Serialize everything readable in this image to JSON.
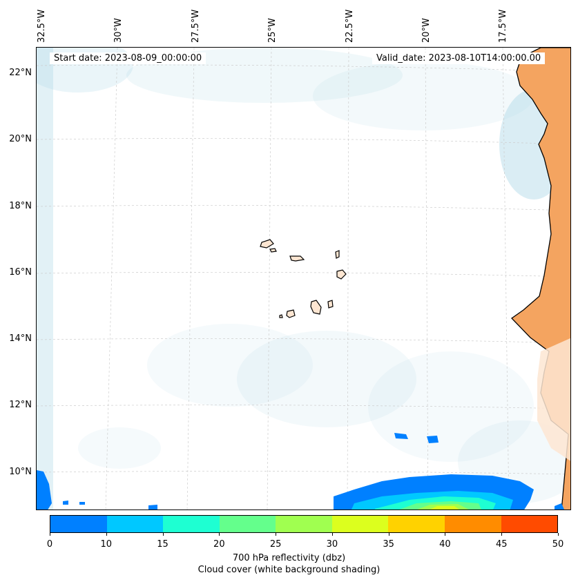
{
  "map": {
    "start_label": "Start date: 2023-08-09_00:00:00",
    "valid_label": "Valid_date: 2023-08-10T14:00:00.00",
    "lon_labels": [
      "32.5°W",
      "30°W",
      "27.5°W",
      "25°W",
      "22.5°W",
      "20°W",
      "17.5°W"
    ],
    "lat_labels": [
      "22°N",
      "20°N",
      "18°N",
      "16°N",
      "14°N",
      "12°N",
      "10°N"
    ]
  },
  "colorbar": {
    "ticks": [
      "0",
      "10",
      "15",
      "20",
      "25",
      "30",
      "35",
      "40",
      "45",
      "50"
    ],
    "colors": [
      "#0080ff",
      "#00c8ff",
      "#1effd2",
      "#64ff8c",
      "#a0ff50",
      "#dcff1e",
      "#ffd200",
      "#ff8c00",
      "#ff4b00"
    ],
    "label_line1": "700 hPa reflectivity (dbz)",
    "label_line2": "Cloud cover (white background shading)"
  },
  "palette": {
    "land": "#f4a460",
    "land_light": "#fde6d2",
    "cloud": "#add8e6",
    "graticule": "#cccccc",
    "coast": "#000000"
  }
}
